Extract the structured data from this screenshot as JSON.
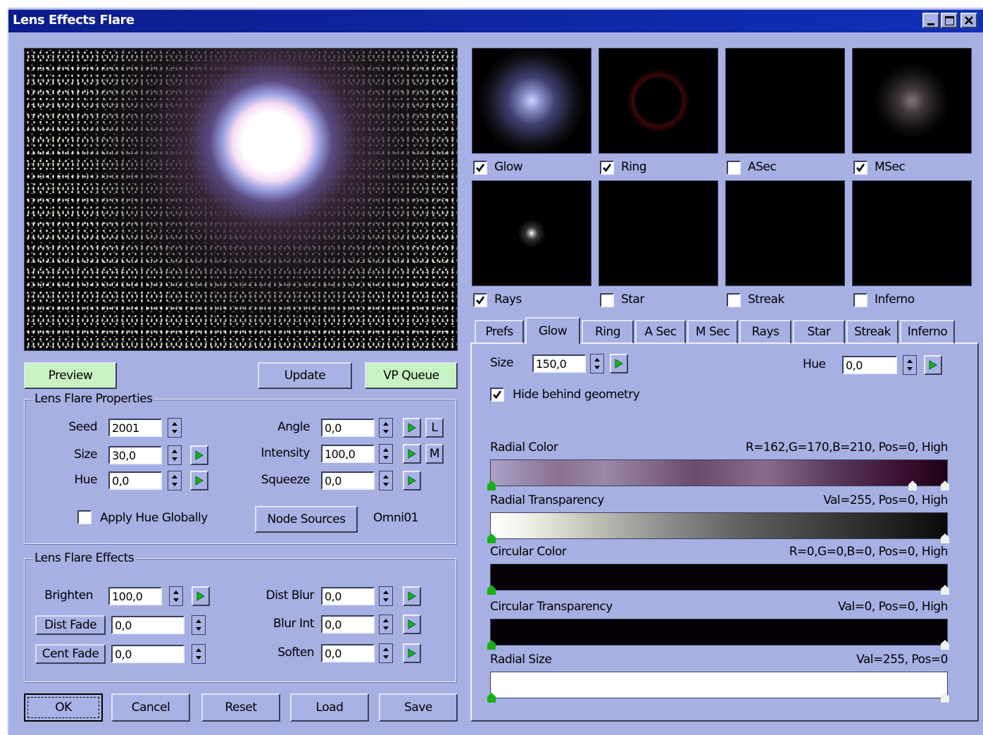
{
  "window": {
    "title": "Lens Effects Flare"
  },
  "preview_buttons": [
    "Preview",
    "Update",
    "VP Queue"
  ],
  "properties": {
    "title": "Lens Flare Properties",
    "fields": [
      {
        "label": "Seed",
        "value": "2001"
      },
      {
        "label": "Size",
        "value": "30,0"
      },
      {
        "label": "Hue",
        "value": "0,0"
      },
      {
        "label": "Angle",
        "value": "0,0"
      },
      {
        "label": "Intensity",
        "value": "100,0"
      },
      {
        "label": "Squeeze",
        "value": "0,0"
      }
    ],
    "angle_lock": "L",
    "intensity_lock": "M",
    "apply_hue": {
      "label": "Apply Hue Globally",
      "checked": false
    },
    "node_sources": "Node Sources",
    "node": "Omni01"
  },
  "effects": {
    "title": "Lens Flare Effects",
    "fields": [
      {
        "label": "Brighten",
        "value": "100,0"
      },
      {
        "label": "Dist Fade",
        "value": "0,0"
      },
      {
        "label": "Cent Fade",
        "value": "0,0"
      },
      {
        "label": "Dist Blur",
        "value": "0,0"
      },
      {
        "label": "Blur Int",
        "value": "0,0"
      },
      {
        "label": "Soften",
        "value": "0,0"
      }
    ]
  },
  "dialog_buttons": [
    "OK",
    "Cancel",
    "Reset",
    "Load",
    "Save"
  ],
  "thumbnails": [
    {
      "label": "Glow",
      "checked": true
    },
    {
      "label": "Ring",
      "checked": true
    },
    {
      "label": "ASec",
      "checked": false
    },
    {
      "label": "MSec",
      "checked": true
    },
    {
      "label": "Rays",
      "checked": true
    },
    {
      "label": "Star",
      "checked": false
    },
    {
      "label": "Streak",
      "checked": false
    },
    {
      "label": "Inferno",
      "checked": false
    }
  ],
  "tabs": {
    "items": [
      "Prefs",
      "Glow",
      "Ring",
      "A Sec",
      "M Sec",
      "Rays",
      "Star",
      "Streak",
      "Inferno"
    ],
    "active": 1
  },
  "glow": {
    "size_label": "Size",
    "size": "150,0",
    "hue_label": "Hue",
    "hue": "0,0",
    "hide": {
      "label": "Hide behind geometry",
      "checked": true
    },
    "gradients": [
      {
        "label": "Radial Color",
        "info": "R=162,G=170,B=210, Pos=0, High"
      },
      {
        "label": "Radial Transparency",
        "info": "Val=255, Pos=0, High"
      },
      {
        "label": "Circular Color",
        "info": "R=0,G=0,B=0, Pos=0, High"
      },
      {
        "label": "Circular Transparency",
        "info": "Val=0, Pos=0, High"
      },
      {
        "label": "Radial Size",
        "info": "Val=255, Pos=0"
      }
    ]
  }
}
